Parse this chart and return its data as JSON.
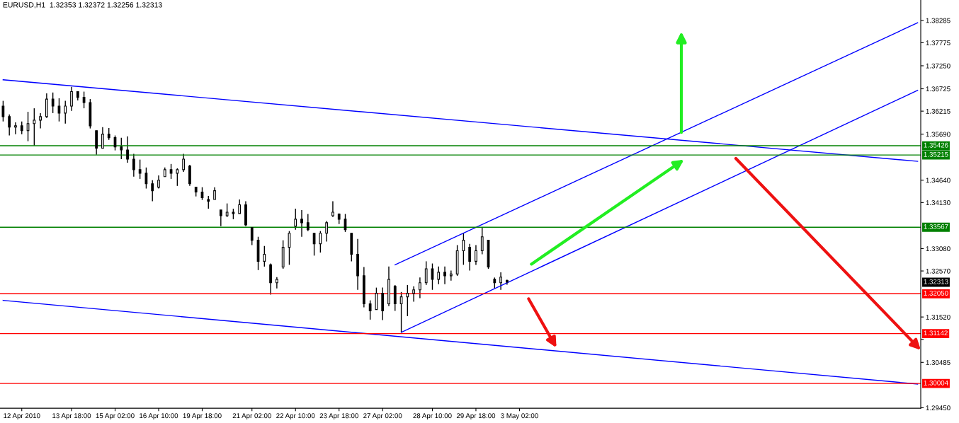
{
  "chart_data": {
    "type": "candlestick",
    "title": "EURUSD,H1  1.32353 1.32372 1.32256 1.32313",
    "color": "#000000",
    "categories": [
      null,
      null,
      null,
      "12 Apr 2010",
      null,
      null,
      null,
      null,
      null,
      null,
      null,
      "13 Apr 18:00",
      null,
      null,
      null,
      null,
      null,
      null,
      "15 Apr 02:00",
      null,
      null,
      null,
      null,
      null,
      null,
      "16 Apr 10:00",
      null,
      null,
      null,
      null,
      null,
      null,
      "19 Apr 18:00",
      null,
      null,
      null,
      null,
      null,
      null,
      null,
      "21 Apr 02:00",
      null,
      null,
      null,
      null,
      null,
      null,
      "22 Apr 10:00",
      null,
      null,
      null,
      null,
      null,
      null,
      "23 Apr 18:00",
      null,
      null,
      null,
      null,
      null,
      null,
      "27 Apr 02:00",
      null,
      null,
      null,
      null,
      null,
      null,
      null,
      "28 Apr 10:00",
      null,
      null,
      null,
      null,
      null,
      null,
      "29 Apr 18:00",
      null,
      null,
      null,
      null,
      null,
      null,
      "3 May 02:00",
      null,
      null,
      null,
      null,
      null,
      null,
      null,
      null,
      null,
      null,
      null,
      null,
      null,
      null,
      null,
      null,
      null,
      null,
      null,
      null,
      null,
      null,
      null,
      null,
      null,
      null,
      null,
      null,
      null,
      null,
      null,
      null,
      null,
      null,
      null,
      null,
      null,
      null,
      null,
      null,
      null,
      null,
      null,
      null,
      null,
      null,
      null,
      null,
      null,
      null,
      null,
      null,
      null,
      null,
      null,
      null,
      null,
      null,
      null,
      null,
      null,
      null,
      null,
      null
    ],
    "ohlc": [
      [
        1.3633,
        1.3645,
        1.3598,
        1.3609
      ],
      [
        1.3609,
        1.3614,
        1.3566,
        1.3585
      ],
      [
        1.3585,
        1.3596,
        1.3569,
        1.3588
      ],
      [
        1.3588,
        1.3598,
        1.3569,
        1.3577
      ],
      [
        1.3577,
        1.362,
        1.3553,
        1.3593
      ],
      [
        1.3593,
        1.3628,
        1.3543,
        1.3601
      ],
      [
        1.3601,
        1.3617,
        1.3582,
        1.3609
      ],
      [
        1.3609,
        1.3662,
        1.3606,
        1.3649
      ],
      [
        1.3649,
        1.3664,
        1.3617,
        1.3633
      ],
      [
        1.3633,
        1.3651,
        1.3598,
        1.3617
      ],
      [
        1.3617,
        1.3645,
        1.3593,
        1.3633
      ],
      [
        1.3633,
        1.3677,
        1.3622,
        1.3666
      ],
      [
        1.3666,
        1.3666,
        1.3646,
        1.3653
      ],
      [
        1.3653,
        1.3666,
        1.3628,
        1.3641
      ],
      [
        1.3641,
        1.3649,
        1.3582,
        1.3588
      ],
      [
        1.3577,
        1.3577,
        1.3522,
        1.3537
      ],
      [
        1.3537,
        1.3585,
        1.3537,
        1.3569
      ],
      [
        1.3569,
        1.3583,
        1.3556,
        1.3561
      ],
      [
        1.3561,
        1.3566,
        1.3532,
        1.354
      ],
      [
        1.354,
        1.3561,
        1.3512,
        1.3533
      ],
      [
        1.3533,
        1.3564,
        1.3504,
        1.3512
      ],
      [
        1.3512,
        1.3524,
        1.3472,
        1.3488
      ],
      [
        1.3488,
        1.3511,
        1.3467,
        1.348
      ],
      [
        1.348,
        1.3493,
        1.3445,
        1.3456
      ],
      [
        1.3456,
        1.3464,
        1.3416,
        1.344
      ],
      [
        1.3448,
        1.3475,
        1.3445,
        1.3464
      ],
      [
        1.3472,
        1.3493,
        1.3472,
        1.3488
      ],
      [
        1.3488,
        1.3501,
        1.3467,
        1.348
      ],
      [
        1.348,
        1.3491,
        1.3451,
        1.3488
      ],
      [
        1.3488,
        1.3524,
        1.3483,
        1.3512
      ],
      [
        1.3496,
        1.3499,
        1.3451,
        1.3456
      ],
      [
        1.3448,
        1.3448,
        1.3427,
        1.3437
      ],
      [
        1.3437,
        1.3448,
        1.3419,
        1.3424
      ],
      [
        1.342,
        1.3428,
        1.3399,
        1.3416
      ],
      [
        1.342,
        1.3448,
        1.342,
        1.344
      ],
      [
        1.3396,
        1.3396,
        1.3359,
        1.3383
      ],
      [
        1.3383,
        1.3411,
        1.338,
        1.3391
      ],
      [
        1.3391,
        1.3399,
        1.3375,
        1.3388
      ],
      [
        1.3388,
        1.342,
        1.3388,
        1.3408
      ],
      [
        1.3408,
        1.3416,
        1.3359,
        1.3362
      ],
      [
        1.3356,
        1.3356,
        1.3316,
        1.3327
      ],
      [
        1.3327,
        1.3335,
        1.3259,
        1.3279
      ],
      [
        1.3279,
        1.3314,
        1.3267,
        1.3295
      ],
      [
        1.3271,
        1.3274,
        1.3203,
        1.323
      ],
      [
        1.323,
        1.3243,
        1.3217,
        1.3238
      ],
      [
        1.3266,
        1.3327,
        1.3262,
        1.3311
      ],
      [
        1.3311,
        1.3348,
        1.3271,
        1.3343
      ],
      [
        1.3359,
        1.3399,
        1.3351,
        1.3375
      ],
      [
        1.3375,
        1.3396,
        1.3335,
        1.3367
      ],
      [
        1.3367,
        1.3387,
        1.3348,
        1.3351
      ],
      [
        1.3343,
        1.3343,
        1.3292,
        1.3319
      ],
      [
        1.3319,
        1.3348,
        1.3299,
        1.3343
      ],
      [
        1.3343,
        1.3371,
        1.3324,
        1.3367
      ],
      [
        1.3383,
        1.3416,
        1.338,
        1.3391
      ],
      [
        1.3387,
        1.3388,
        1.3364,
        1.3375
      ],
      [
        1.3375,
        1.3387,
        1.3346,
        1.3351
      ],
      [
        1.3343,
        1.3343,
        1.3279,
        1.3295
      ],
      [
        1.3295,
        1.333,
        1.3214,
        1.3246
      ],
      [
        1.3246,
        1.3266,
        1.3174,
        1.3182
      ],
      [
        1.3182,
        1.319,
        1.3146,
        1.3166
      ],
      [
        1.3169,
        1.3219,
        1.3169,
        1.3206
      ],
      [
        1.3206,
        1.3219,
        1.3145,
        1.3166
      ],
      [
        1.3182,
        1.3267,
        1.3177,
        1.3238
      ],
      [
        1.3222,
        1.3225,
        1.3166,
        1.3182
      ],
      [
        1.3182,
        1.3209,
        1.3117,
        1.3198
      ],
      [
        1.3198,
        1.3225,
        1.3154,
        1.3206
      ],
      [
        1.3206,
        1.3222,
        1.3187,
        1.3214
      ],
      [
        1.3214,
        1.3242,
        1.3195,
        1.323
      ],
      [
        1.323,
        1.3279,
        1.3225,
        1.3262
      ],
      [
        1.3262,
        1.3274,
        1.3214,
        1.3238
      ],
      [
        1.3238,
        1.3267,
        1.3227,
        1.3254
      ],
      [
        1.3254,
        1.3267,
        1.3227,
        1.3246
      ],
      [
        1.3246,
        1.3258,
        1.3235,
        1.325
      ],
      [
        1.325,
        1.3316,
        1.3246,
        1.3303
      ],
      [
        1.3303,
        1.3343,
        1.3271,
        1.3327
      ],
      [
        1.3311,
        1.3319,
        1.3258,
        1.3279
      ],
      [
        1.3279,
        1.3316,
        1.3271,
        1.3303
      ],
      [
        1.3303,
        1.3356,
        1.3295,
        1.3335
      ],
      [
        1.3327,
        1.3327,
        1.3262,
        1.3266
      ],
      [
        1.3238,
        1.3242,
        1.3217,
        1.323
      ],
      [
        1.323,
        1.3254,
        1.3214,
        1.3243
      ],
      [
        1.32353,
        1.32372,
        1.32256,
        1.32313
      ],
      null,
      null,
      null,
      null,
      null,
      null,
      null,
      null,
      null,
      null,
      null,
      null,
      null,
      null,
      null,
      null,
      null,
      null,
      null,
      null,
      null,
      null,
      null,
      null,
      null,
      null,
      null,
      null,
      null,
      null,
      null,
      null,
      null,
      null,
      null,
      null,
      null,
      null,
      null,
      null,
      null,
      null,
      null,
      null,
      null,
      null,
      null,
      null,
      null,
      null,
      null,
      null,
      null,
      null,
      null,
      null,
      null,
      null,
      null,
      null,
      null,
      null,
      null,
      null,
      null,
      null
    ],
    "series": [
      {
        "type": "line",
        "color": "#0000ff",
        "values": [
          1.3693,
          null,
          null,
          null,
          null,
          null,
          null,
          null,
          null,
          null,
          null,
          null,
          null,
          null,
          null,
          null,
          null,
          null,
          null,
          null,
          null,
          null,
          null,
          null,
          null,
          null,
          null,
          null,
          null,
          null,
          null,
          null,
          null,
          null,
          null,
          null,
          null,
          null,
          null,
          null,
          null,
          null,
          null,
          null,
          null,
          null,
          null,
          null,
          null,
          null,
          null,
          null,
          null,
          null,
          null,
          null,
          null,
          null,
          null,
          null,
          null,
          null,
          null,
          null,
          null,
          null,
          null,
          null,
          null,
          null,
          null,
          null,
          null,
          null,
          null,
          null,
          null,
          null,
          null,
          null,
          null,
          null,
          null,
          null,
          null,
          null,
          null,
          null,
          null,
          null,
          null,
          null,
          null,
          null,
          null,
          null,
          null,
          null,
          null,
          null,
          null,
          null,
          null,
          null,
          null,
          null,
          null,
          null,
          null,
          null,
          null,
          null,
          null,
          null,
          null,
          null,
          null,
          null,
          null,
          null,
          null,
          null,
          null,
          null,
          null,
          null,
          null,
          null,
          null,
          null,
          null,
          null,
          null,
          null,
          null,
          null,
          null,
          null,
          null,
          null,
          null,
          null,
          null,
          null,
          null,
          null,
          null,
          1.3507
        ]
      },
      {
        "type": "line",
        "color": "#0000ff",
        "values": [
          1.319,
          null,
          null,
          null,
          null,
          null,
          null,
          null,
          null,
          null,
          null,
          null,
          null,
          null,
          null,
          null,
          null,
          null,
          null,
          null,
          null,
          null,
          null,
          null,
          null,
          null,
          null,
          null,
          null,
          null,
          null,
          null,
          null,
          null,
          null,
          null,
          null,
          null,
          null,
          null,
          null,
          null,
          null,
          null,
          null,
          null,
          null,
          null,
          null,
          null,
          null,
          null,
          null,
          null,
          null,
          null,
          null,
          null,
          null,
          null,
          null,
          null,
          null,
          null,
          null,
          null,
          null,
          null,
          null,
          null,
          null,
          null,
          null,
          null,
          null,
          null,
          null,
          null,
          null,
          null,
          null,
          null,
          null,
          null,
          null,
          null,
          null,
          null,
          null,
          null,
          null,
          null,
          null,
          null,
          null,
          null,
          null,
          null,
          null,
          null,
          null,
          null,
          null,
          null,
          null,
          null,
          null,
          null,
          null,
          null,
          null,
          null,
          null,
          null,
          null,
          null,
          null,
          null,
          null,
          null,
          null,
          null,
          null,
          null,
          null,
          null,
          null,
          null,
          null,
          null,
          null,
          null,
          null,
          null,
          null,
          null,
          null,
          null,
          null,
          null,
          null,
          null,
          null,
          null,
          null,
          null,
          null,
          1.2999
        ]
      },
      {
        "type": "line",
        "color": "#0000ff",
        "values": [
          null,
          null,
          null,
          null,
          null,
          null,
          null,
          null,
          null,
          null,
          null,
          null,
          null,
          null,
          null,
          null,
          null,
          null,
          null,
          null,
          null,
          null,
          null,
          null,
          null,
          null,
          null,
          null,
          null,
          null,
          null,
          null,
          null,
          null,
          null,
          null,
          null,
          null,
          null,
          null,
          null,
          null,
          null,
          null,
          null,
          null,
          null,
          null,
          null,
          null,
          null,
          null,
          null,
          null,
          null,
          null,
          null,
          null,
          null,
          null,
          null,
          null,
          null,
          1.3271,
          null,
          null,
          null,
          null,
          null,
          null,
          null,
          null,
          null,
          null,
          null,
          null,
          null,
          null,
          null,
          null,
          null,
          null,
          null,
          null,
          null,
          null,
          null,
          null,
          null,
          null,
          null,
          null,
          null,
          null,
          null,
          null,
          null,
          null,
          null,
          null,
          null,
          null,
          null,
          null,
          null,
          null,
          null,
          null,
          null,
          null,
          null,
          null,
          null,
          null,
          null,
          null,
          null,
          null,
          null,
          null,
          null,
          null,
          null,
          null,
          null,
          null,
          null,
          null,
          null,
          null,
          null,
          null,
          null,
          null,
          null,
          null,
          null,
          null,
          null,
          null,
          null,
          null,
          null,
          null,
          null,
          null,
          null,
          1.3823
        ]
      },
      {
        "type": "line",
        "color": "#0000ff",
        "values": [
          null,
          null,
          null,
          null,
          null,
          null,
          null,
          null,
          null,
          null,
          null,
          null,
          null,
          null,
          null,
          null,
          null,
          null,
          null,
          null,
          null,
          null,
          null,
          null,
          null,
          null,
          null,
          null,
          null,
          null,
          null,
          null,
          null,
          null,
          null,
          null,
          null,
          null,
          null,
          null,
          null,
          null,
          null,
          null,
          null,
          null,
          null,
          null,
          null,
          null,
          null,
          null,
          null,
          null,
          null,
          null,
          null,
          null,
          null,
          null,
          null,
          null,
          null,
          null,
          1.3117,
          null,
          null,
          null,
          null,
          null,
          null,
          null,
          null,
          null,
          null,
          null,
          null,
          null,
          null,
          null,
          null,
          null,
          null,
          null,
          null,
          null,
          null,
          null,
          null,
          null,
          null,
          null,
          null,
          null,
          null,
          null,
          null,
          null,
          null,
          null,
          null,
          null,
          null,
          null,
          null,
          null,
          null,
          null,
          null,
          null,
          null,
          null,
          null,
          null,
          null,
          null,
          null,
          null,
          null,
          null,
          null,
          null,
          null,
          null,
          null,
          null,
          null,
          null,
          null,
          null,
          null,
          null,
          null,
          null,
          null,
          null,
          null,
          null,
          null,
          null,
          null,
          null,
          null,
          null,
          null,
          null,
          null,
          1.3669
        ]
      }
    ],
    "ref_lines": [
      {
        "axis": "y",
        "value": 1.35426,
        "label": "1.35426",
        "color": "#008000"
      },
      {
        "axis": "y",
        "value": 1.35215,
        "label": "1.35215",
        "color": "#008000"
      },
      {
        "axis": "y",
        "value": 1.33567,
        "label": "1.33567",
        "color": "#008000"
      },
      {
        "axis": "y",
        "value": 1.3205,
        "label": "1.32050",
        "color": "#ff0000"
      },
      {
        "axis": "y",
        "value": 1.31142,
        "label": "1.31142",
        "color": "#ff0000"
      },
      {
        "axis": "y",
        "value": 1.30004,
        "label": "1.30004",
        "color": "#ff0000"
      }
    ],
    "annotations": [
      {
        "text": "1.32313",
        "y": 1.32313
      }
    ],
    "ylim": [
      1.2944,
      1.3875
    ],
    "yticks": [
      1.38285,
      1.37775,
      {
        "value": 1.3725,
        "label": "1.37250"
      },
      1.36725,
      1.36215,
      {
        "value": 1.3569,
        "label": "1.35690"
      },
      {
        "value": 1.3464,
        "label": "1.34640"
      },
      {
        "value": 1.3413,
        "label": "1.34130"
      },
      {
        "value": 1.3308,
        "label": "1.33080"
      },
      {
        "value": 1.3257,
        "label": "1.32570"
      },
      {
        "value": 1.3152,
        "label": "1.31520"
      },
      {
        "value": 1.3101,
        "label": null
      },
      1.30485,
      {
        "value": 1.2945,
        "label": "1.29450"
      }
    ],
    "grid": false,
    "legend": false
  }
}
